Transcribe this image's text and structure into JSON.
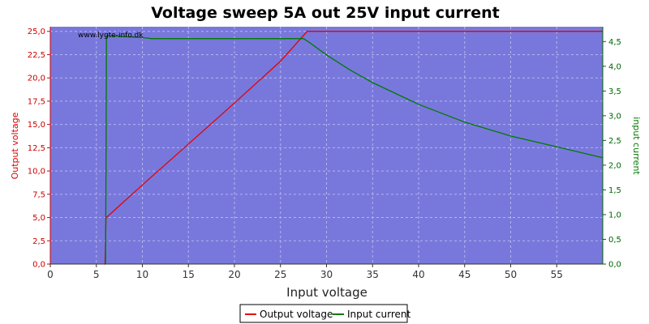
{
  "chart_data": {
    "type": "line",
    "title": "Voltage sweep 5A out 25V input current",
    "xlabel": "Input voltage",
    "ylabel_left": "Output voltage",
    "ylabel_right": "input current",
    "watermark": "www.lygte-info.dk",
    "xlim": [
      0,
      60
    ],
    "ylim_left": [
      0,
      25.5
    ],
    "ylim_right": [
      0,
      4.8
    ],
    "x_ticks": [
      "0",
      "5",
      "10",
      "15",
      "20",
      "25",
      "30",
      "35",
      "40",
      "45",
      "50",
      "55"
    ],
    "y_left_ticks": [
      "0,0",
      "2,5",
      "5,0",
      "7,5",
      "10,0",
      "12,5",
      "15,0",
      "17,5",
      "20,0",
      "22,5",
      "25,0"
    ],
    "y_right_ticks": [
      "0,0",
      "0,5",
      "1,0",
      "1,5",
      "2,0",
      "2,5",
      "3,0",
      "3,5",
      "4,0",
      "4,5"
    ],
    "grid": true,
    "legend_position": "bottom",
    "colors": {
      "plot_background": "#7878dc",
      "grid": "#b4b4ee",
      "output_voltage": "#e60000",
      "input_current": "#007a00"
    },
    "series": [
      {
        "name": "Output voltage",
        "axis": "left",
        "x": [
          5.8,
          5.95,
          6.05,
          6.2,
          10,
          15,
          20,
          25,
          27.9,
          29,
          35,
          40,
          45,
          50,
          55,
          60
        ],
        "y": [
          0.0,
          0.0,
          5.0,
          5.1,
          8.5,
          12.9,
          17.3,
          21.8,
          25.0,
          25.0,
          25.0,
          25.0,
          25.0,
          25.0,
          25.0,
          25.0
        ]
      },
      {
        "name": "Input current",
        "axis": "right",
        "x": [
          6.0,
          6.05,
          6.1,
          6.3,
          8,
          10,
          11,
          15,
          20,
          25,
          27.5,
          28,
          30,
          32.5,
          35,
          40,
          45,
          50,
          55,
          60
        ],
        "y": [
          0.0,
          2.0,
          4.62,
          4.62,
          4.6,
          4.58,
          4.56,
          4.56,
          4.56,
          4.56,
          4.56,
          4.5,
          4.23,
          3.93,
          3.67,
          3.23,
          2.87,
          2.59,
          2.37,
          2.15
        ]
      }
    ]
  }
}
